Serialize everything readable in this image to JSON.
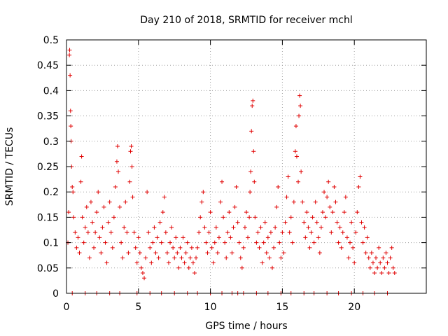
{
  "chart_data": {
    "type": "scatter",
    "title": "Day 210 of 2018, SRMTID for receiver mchl",
    "xlabel": "GPS time / hours",
    "ylabel": "SRMTID / TECUs",
    "xlim": [
      0,
      25
    ],
    "ylim": [
      0,
      0.5
    ],
    "x_ticks": [
      0,
      5,
      10,
      15,
      20
    ],
    "x_tick_labels": [
      "0",
      "5",
      "10",
      "15",
      "20"
    ],
    "y_ticks": [
      0,
      0.05,
      0.1,
      0.15,
      0.2,
      0.25,
      0.3,
      0.35,
      0.4,
      0.45,
      0.5
    ],
    "y_tick_labels": [
      "0",
      "0.05",
      "0.1",
      "0.15",
      "0.2",
      "0.25",
      "0.3",
      "0.35",
      "0.4",
      "0.45",
      "0.5"
    ],
    "grid": true,
    "marker": "+",
    "series": [
      {
        "name": "SRMTID",
        "color": "#e00000",
        "points": [
          [
            0.1,
            0.1
          ],
          [
            0.15,
            0.16
          ],
          [
            0.2,
            0.47
          ],
          [
            0.22,
            0.48
          ],
          [
            0.25,
            0.43
          ],
          [
            0.28,
            0.36
          ],
          [
            0.3,
            0.33
          ],
          [
            0.32,
            0.3
          ],
          [
            0.35,
            0.25
          ],
          [
            0.4,
            0.21
          ],
          [
            0.45,
            0.2
          ],
          [
            0.5,
            0.15
          ],
          [
            0.6,
            0.12
          ],
          [
            0.7,
            0.09
          ],
          [
            0.8,
            0.11
          ],
          [
            0.9,
            0.08
          ],
          [
            1.0,
            0.22
          ],
          [
            1.05,
            0.27
          ],
          [
            1.1,
            0.15
          ],
          [
            1.2,
            0.1
          ],
          [
            1.3,
            0.13
          ],
          [
            1.4,
            0.17
          ],
          [
            1.5,
            0.12
          ],
          [
            1.6,
            0.07
          ],
          [
            1.7,
            0.18
          ],
          [
            1.8,
            0.14
          ],
          [
            1.9,
            0.09
          ],
          [
            2.0,
            0.12
          ],
          [
            2.1,
            0.16
          ],
          [
            2.2,
            0.2
          ],
          [
            2.3,
            0.11
          ],
          [
            2.4,
            0.08
          ],
          [
            2.5,
            0.13
          ],
          [
            2.6,
            0.17
          ],
          [
            2.7,
            0.1
          ],
          [
            2.8,
            0.06
          ],
          [
            2.9,
            0.14
          ],
          [
            3.0,
            0.18
          ],
          [
            3.1,
            0.12
          ],
          [
            3.2,
            0.09
          ],
          [
            3.3,
            0.15
          ],
          [
            3.4,
            0.21
          ],
          [
            3.5,
            0.26
          ],
          [
            3.55,
            0.29
          ],
          [
            3.6,
            0.24
          ],
          [
            3.7,
            0.17
          ],
          [
            3.8,
            0.1
          ],
          [
            3.9,
            0.07
          ],
          [
            4.0,
            0.13
          ],
          [
            4.1,
            0.18
          ],
          [
            4.2,
            0.12
          ],
          [
            4.3,
            0.08
          ],
          [
            4.4,
            0.22
          ],
          [
            4.45,
            0.28
          ],
          [
            4.5,
            0.29
          ],
          [
            4.55,
            0.25
          ],
          [
            4.6,
            0.19
          ],
          [
            4.7,
            0.12
          ],
          [
            4.8,
            0.09
          ],
          [
            4.9,
            0.06
          ],
          [
            5.0,
            0.11
          ],
          [
            5.1,
            0.08
          ],
          [
            5.2,
            0.05
          ],
          [
            5.3,
            0.04
          ],
          [
            5.4,
            0.03
          ],
          [
            5.5,
            0.07
          ],
          [
            5.6,
            0.2
          ],
          [
            5.7,
            0.12
          ],
          [
            5.8,
            0.09
          ],
          [
            5.9,
            0.06
          ],
          [
            6.0,
            0.1
          ],
          [
            6.1,
            0.13
          ],
          [
            6.2,
            0.08
          ],
          [
            6.3,
            0.11
          ],
          [
            6.4,
            0.07
          ],
          [
            6.5,
            0.14
          ],
          [
            6.6,
            0.1
          ],
          [
            6.7,
            0.16
          ],
          [
            6.8,
            0.19
          ],
          [
            6.9,
            0.12
          ],
          [
            7.0,
            0.08
          ],
          [
            7.1,
            0.06
          ],
          [
            7.2,
            0.1
          ],
          [
            7.3,
            0.13
          ],
          [
            7.4,
            0.09
          ],
          [
            7.5,
            0.07
          ],
          [
            7.6,
            0.11
          ],
          [
            7.7,
            0.08
          ],
          [
            7.8,
            0.05
          ],
          [
            7.9,
            0.09
          ],
          [
            8.0,
            0.07
          ],
          [
            8.1,
            0.11
          ],
          [
            8.2,
            0.06
          ],
          [
            8.3,
            0.08
          ],
          [
            8.4,
            0.1
          ],
          [
            8.5,
            0.05
          ],
          [
            8.6,
            0.07
          ],
          [
            8.7,
            0.09
          ],
          [
            8.8,
            0.06
          ],
          [
            8.9,
            0.04
          ],
          [
            9.0,
            0.07
          ],
          [
            9.1,
            0.09
          ],
          [
            9.2,
            0.12
          ],
          [
            9.3,
            0.15
          ],
          [
            9.4,
            0.18
          ],
          [
            9.5,
            0.2
          ],
          [
            9.6,
            0.13
          ],
          [
            9.7,
            0.1
          ],
          [
            9.8,
            0.08
          ],
          [
            9.9,
            0.12
          ],
          [
            10.0,
            0.16
          ],
          [
            10.1,
            0.09
          ],
          [
            10.2,
            0.06
          ],
          [
            10.3,
            0.1
          ],
          [
            10.4,
            0.13
          ],
          [
            10.5,
            0.08
          ],
          [
            10.6,
            0.11
          ],
          [
            10.7,
            0.18
          ],
          [
            10.8,
            0.22
          ],
          [
            10.9,
            0.15
          ],
          [
            11.0,
            0.1
          ],
          [
            11.1,
            0.07
          ],
          [
            11.2,
            0.12
          ],
          [
            11.3,
            0.16
          ],
          [
            11.4,
            0.11
          ],
          [
            11.5,
            0.08
          ],
          [
            11.6,
            0.13
          ],
          [
            11.7,
            0.17
          ],
          [
            11.8,
            0.21
          ],
          [
            11.9,
            0.14
          ],
          [
            12.0,
            0.1
          ],
          [
            12.1,
            0.07
          ],
          [
            12.2,
            0.05
          ],
          [
            12.3,
            0.09
          ],
          [
            12.4,
            0.13
          ],
          [
            12.5,
            0.16
          ],
          [
            12.6,
            0.11
          ],
          [
            12.7,
            0.15
          ],
          [
            12.75,
            0.2
          ],
          [
            12.8,
            0.24
          ],
          [
            12.85,
            0.32
          ],
          [
            12.9,
            0.37
          ],
          [
            12.95,
            0.38
          ],
          [
            13.0,
            0.28
          ],
          [
            13.05,
            0.22
          ],
          [
            13.1,
            0.15
          ],
          [
            13.2,
            0.1
          ],
          [
            13.3,
            0.12
          ],
          [
            13.4,
            0.09
          ],
          [
            13.5,
            0.13
          ],
          [
            13.6,
            0.06
          ],
          [
            13.7,
            0.1
          ],
          [
            13.8,
            0.14
          ],
          [
            13.9,
            0.08
          ],
          [
            14.0,
            0.11
          ],
          [
            14.1,
            0.07
          ],
          [
            14.2,
            0.12
          ],
          [
            14.3,
            0.05
          ],
          [
            14.4,
            0.09
          ],
          [
            14.5,
            0.13
          ],
          [
            14.6,
            0.17
          ],
          [
            14.7,
            0.21
          ],
          [
            14.8,
            0.1
          ],
          [
            14.9,
            0.07
          ],
          [
            15.0,
            0.12
          ],
          [
            15.1,
            0.08
          ],
          [
            15.2,
            0.14
          ],
          [
            15.3,
            0.19
          ],
          [
            15.4,
            0.23
          ],
          [
            15.5,
            0.12
          ],
          [
            15.6,
            0.15
          ],
          [
            15.7,
            0.1
          ],
          [
            15.8,
            0.18
          ],
          [
            15.9,
            0.28
          ],
          [
            15.95,
            0.33
          ],
          [
            16.0,
            0.27
          ],
          [
            16.1,
            0.22
          ],
          [
            16.15,
            0.35
          ],
          [
            16.2,
            0.39
          ],
          [
            16.25,
            0.37
          ],
          [
            16.3,
            0.24
          ],
          [
            16.4,
            0.18
          ],
          [
            16.5,
            0.14
          ],
          [
            16.6,
            0.11
          ],
          [
            16.7,
            0.16
          ],
          [
            16.8,
            0.13
          ],
          [
            16.9,
            0.09
          ],
          [
            17.0,
            0.12
          ],
          [
            17.1,
            0.15
          ],
          [
            17.2,
            0.1
          ],
          [
            17.3,
            0.18
          ],
          [
            17.4,
            0.14
          ],
          [
            17.5,
            0.11
          ],
          [
            17.6,
            0.08
          ],
          [
            17.7,
            0.13
          ],
          [
            17.8,
            0.16
          ],
          [
            17.9,
            0.2
          ],
          [
            18.0,
            0.15
          ],
          [
            18.1,
            0.19
          ],
          [
            18.2,
            0.22
          ],
          [
            18.3,
            0.17
          ],
          [
            18.4,
            0.12
          ],
          [
            18.5,
            0.16
          ],
          [
            18.6,
            0.21
          ],
          [
            18.7,
            0.18
          ],
          [
            18.8,
            0.14
          ],
          [
            18.9,
            0.1
          ],
          [
            19.0,
            0.13
          ],
          [
            19.1,
            0.09
          ],
          [
            19.2,
            0.12
          ],
          [
            19.3,
            0.16
          ],
          [
            19.4,
            0.19
          ],
          [
            19.5,
            0.11
          ],
          [
            19.6,
            0.07
          ],
          [
            19.7,
            0.1
          ],
          [
            19.8,
            0.14
          ],
          [
            19.9,
            0.09
          ],
          [
            20.0,
            0.06
          ],
          [
            20.1,
            0.12
          ],
          [
            20.2,
            0.16
          ],
          [
            20.3,
            0.21
          ],
          [
            20.4,
            0.23
          ],
          [
            20.5,
            0.14
          ],
          [
            20.6,
            0.1
          ],
          [
            20.7,
            0.13
          ],
          [
            20.8,
            0.08
          ],
          [
            20.9,
            0.11
          ],
          [
            21.0,
            0.07
          ],
          [
            21.1,
            0.05
          ],
          [
            21.2,
            0.08
          ],
          [
            21.3,
            0.06
          ],
          [
            21.4,
            0.04
          ],
          [
            21.5,
            0.07
          ],
          [
            21.6,
            0.05
          ],
          [
            21.7,
            0.09
          ],
          [
            21.8,
            0.06
          ],
          [
            21.9,
            0.04
          ],
          [
            22.0,
            0.07
          ],
          [
            22.1,
            0.05
          ],
          [
            22.2,
            0.08
          ],
          [
            22.3,
            0.06
          ],
          [
            22.4,
            0.04
          ],
          [
            22.5,
            0.07
          ],
          [
            22.6,
            0.09
          ],
          [
            22.7,
            0.05
          ],
          [
            22.8,
            0.04
          ],
          [
            0.4,
            0
          ],
          [
            1.3,
            0
          ],
          [
            2.1,
            0
          ],
          [
            3.0,
            0
          ],
          [
            3.7,
            0
          ],
          [
            4.9,
            0
          ],
          [
            5.8,
            0
          ],
          [
            6.6,
            0
          ],
          [
            7.5,
            0
          ],
          [
            8.4,
            0
          ],
          [
            9.1,
            0
          ],
          [
            10.0,
            0
          ],
          [
            10.8,
            0
          ],
          [
            11.5,
            0
          ],
          [
            11.9,
            0
          ],
          [
            12.3,
            0
          ],
          [
            13.2,
            0
          ],
          [
            14.0,
            0
          ],
          [
            14.9,
            0
          ],
          [
            15.6,
            0
          ],
          [
            16.5,
            0
          ],
          [
            17.2,
            0
          ],
          [
            18.1,
            0
          ],
          [
            18.9,
            0
          ],
          [
            19.8,
            0
          ],
          [
            20.6,
            0
          ],
          [
            21.4,
            0
          ],
          [
            22.3,
            0
          ]
        ]
      }
    ]
  }
}
